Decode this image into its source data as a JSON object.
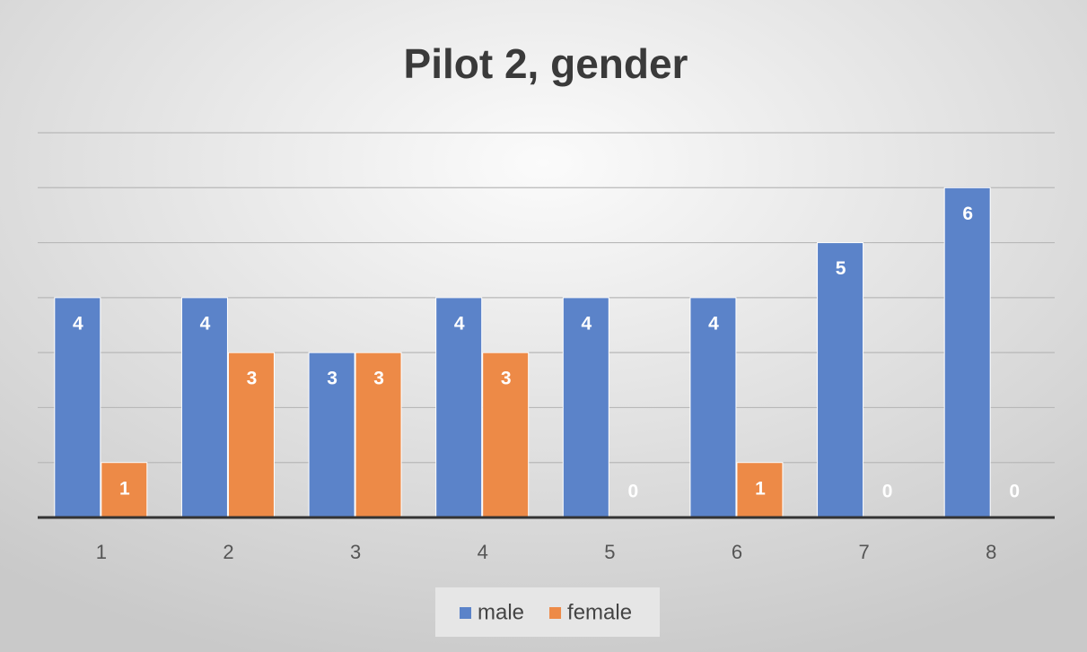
{
  "chart_data": {
    "type": "bar",
    "title": "Pilot 2, gender",
    "categories": [
      "1",
      "2",
      "3",
      "4",
      "5",
      "6",
      "7",
      "8"
    ],
    "series": [
      {
        "name": "male",
        "color": "#5b83c9",
        "values": [
          4,
          4,
          3,
          4,
          4,
          4,
          5,
          6
        ]
      },
      {
        "name": "female",
        "color": "#ed8a47",
        "values": [
          1,
          3,
          3,
          3,
          0,
          1,
          0,
          0
        ]
      }
    ],
    "ylim": [
      0,
      7
    ],
    "yticks": [
      0,
      1,
      2,
      3,
      4,
      5,
      6,
      7
    ],
    "grid": true,
    "legend": "bottom"
  }
}
